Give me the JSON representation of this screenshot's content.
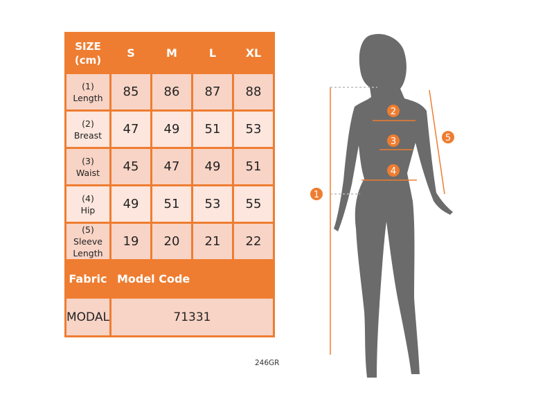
{
  "size_table": {
    "corner_label_line1": "SIZE",
    "corner_label_line2": "(cm)",
    "sizes": [
      "S",
      "M",
      "L",
      "XL"
    ],
    "rows": [
      {
        "num": "(1)",
        "name": "Length",
        "values": [
          "85",
          "86",
          "87",
          "88"
        ]
      },
      {
        "num": "(2)",
        "name": "Breast",
        "values": [
          "47",
          "49",
          "51",
          "53"
        ]
      },
      {
        "num": "(3)",
        "name": "Waist",
        "values": [
          "45",
          "47",
          "49",
          "51"
        ]
      },
      {
        "num": "(4)",
        "name": "Hip",
        "values": [
          "49",
          "51",
          "53",
          "55"
        ]
      },
      {
        "num": "(5)",
        "name": "Sleeve Length",
        "values": [
          "19",
          "20",
          "21",
          "22"
        ]
      }
    ],
    "fabric_label": "Fabric",
    "model_code_label": "Model Code",
    "fabric_value": "MODAL",
    "model_code_value": "71331"
  },
  "product_code": "246GR",
  "figure": {
    "markers": [
      "1",
      "2",
      "3",
      "4",
      "5"
    ],
    "accent_color": "#ee7d31",
    "silhouette_color": "#6b6b6b"
  }
}
